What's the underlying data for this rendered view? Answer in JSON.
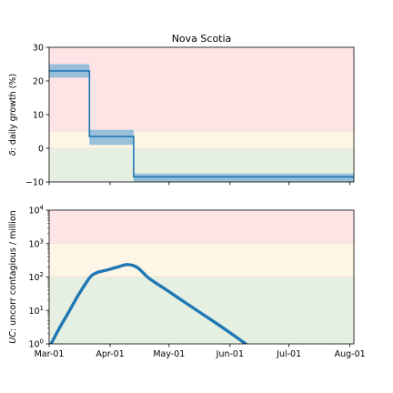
{
  "chart_data": [
    {
      "type": "line",
      "title": "Nova Scotia",
      "xlabel": "",
      "ylabel": "δ: daily growth (%)",
      "ylabel_delta": "δ",
      "ylabel_rest": ": daily growth (%)",
      "ylim": [
        -10,
        30
      ],
      "yticks": [
        -10,
        0,
        10,
        20,
        30
      ],
      "ytick_labels": [
        "−10",
        "0",
        "10",
        "20",
        "30"
      ],
      "xlim_days": [
        0,
        155
      ],
      "zones": [
        {
          "from": 5,
          "to": 30,
          "color": "#fde5e6"
        },
        {
          "from": 0,
          "to": 5,
          "color": "#fdf5e5"
        },
        {
          "from": -10,
          "to": 0,
          "color": "#e6f0e2"
        }
      ],
      "bands": [
        {
          "x": [
            0,
            20.5
          ],
          "low": 21,
          "high": 25
        },
        {
          "x": [
            20.5,
            43
          ],
          "low": 1,
          "high": 5.5
        },
        {
          "x": [
            43,
            155
          ],
          "low": -10,
          "high": -7.5
        }
      ],
      "series": [
        {
          "x": [
            0,
            20.5,
            20.5,
            43,
            43,
            155
          ],
          "y": [
            23,
            23,
            3.5,
            3.5,
            -8.5,
            -8.5
          ]
        }
      ],
      "line_color": "#1f77b4",
      "band_color": "#7fb4d8"
    },
    {
      "type": "line",
      "title": "",
      "xlabel": "",
      "ylabel": "UC: uncorr contagious / million",
      "ylabel_uc": "UC",
      "ylabel_rest": ": uncorr contagious / million",
      "yscale": "log",
      "ylim": [
        1,
        10000
      ],
      "yticks": [
        1,
        10,
        100,
        1000,
        10000
      ],
      "ytick_labels": [
        {
          "base": "10",
          "exp": "0"
        },
        {
          "base": "10",
          "exp": "1"
        },
        {
          "base": "10",
          "exp": "2"
        },
        {
          "base": "10",
          "exp": "3"
        },
        {
          "base": "10",
          "exp": "4"
        }
      ],
      "zones": [
        {
          "from": 1000,
          "to": 10000,
          "color": "#fde5e6"
        },
        {
          "from": 100,
          "to": 1000,
          "color": "#fdf5e5"
        },
        {
          "from": 1,
          "to": 100,
          "color": "#e6f0e2"
        }
      ],
      "xticks": [
        0,
        31,
        61,
        92,
        122,
        153
      ],
      "xtick_labels": [
        "Mar-01",
        "Apr-01",
        "May-01",
        "Jun-01",
        "Jul-01",
        "Aug-01"
      ],
      "series": [
        {
          "x": [
            1,
            5,
            10,
            15,
            20,
            22,
            25,
            30,
            35,
            40,
            45,
            50,
            55,
            60,
            70,
            80,
            90,
            100
          ],
          "y": [
            1.0,
            2.8,
            9,
            30,
            85,
            115,
            140,
            165,
            200,
            235,
            190,
            100,
            62,
            40,
            16,
            6.5,
            2.6,
            1.0
          ]
        }
      ],
      "line_color": "#1f77b4"
    }
  ]
}
